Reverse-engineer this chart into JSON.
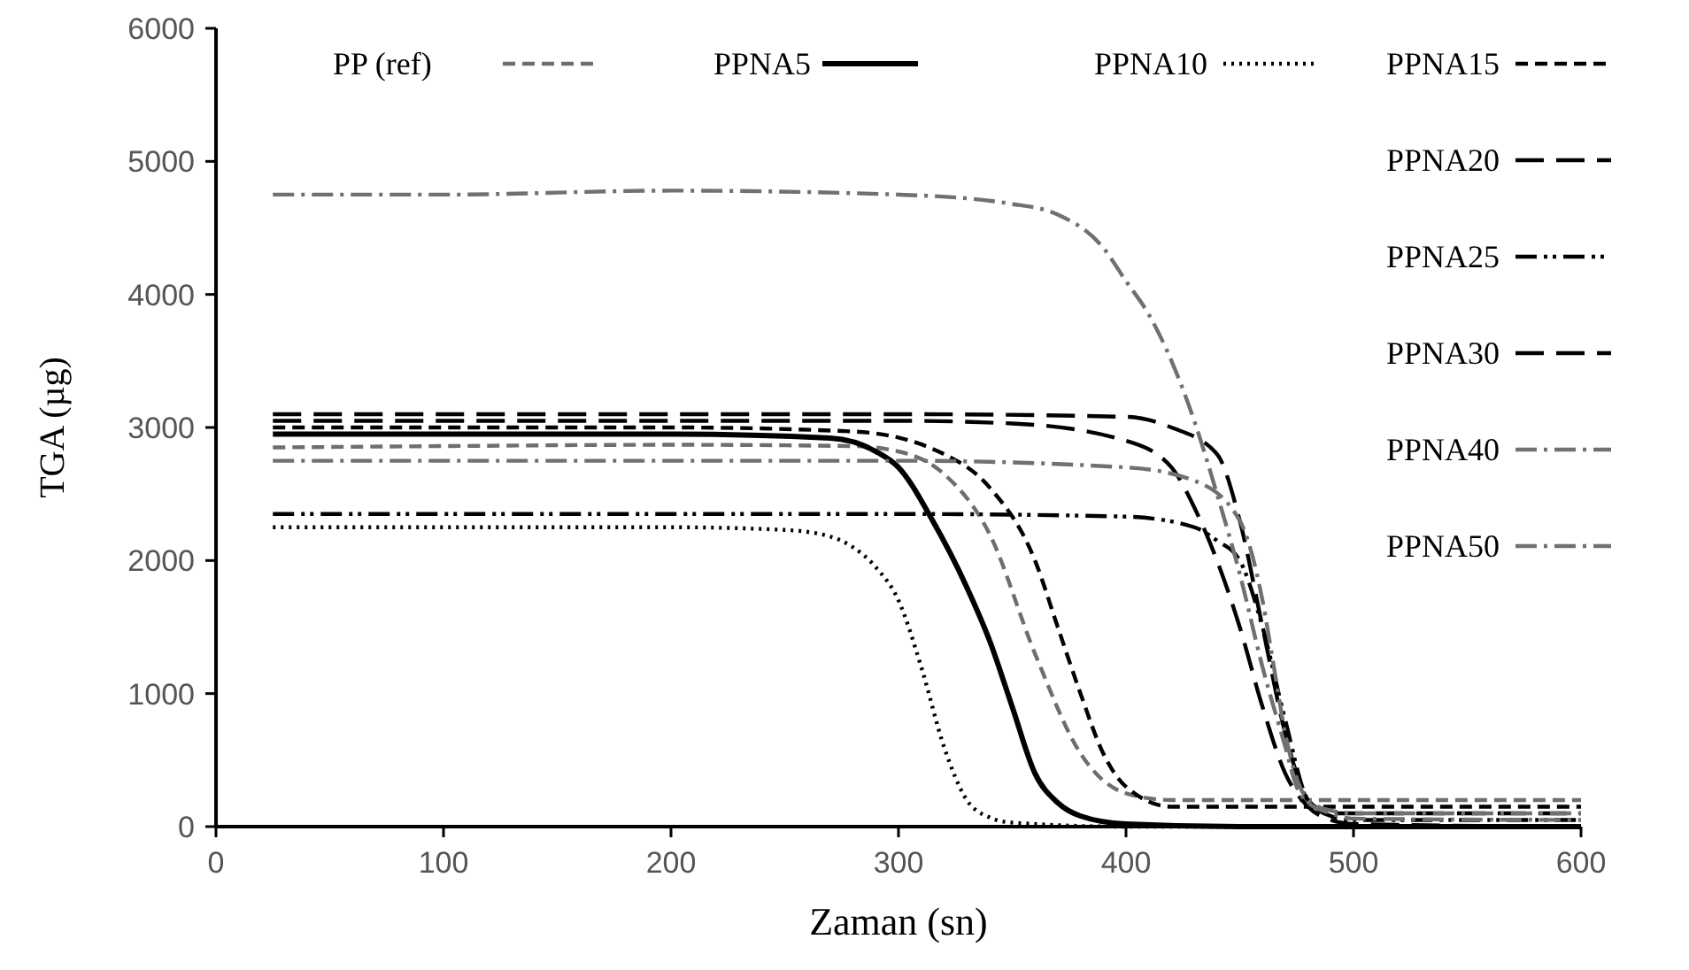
{
  "chart_data": {
    "type": "line",
    "xlabel": "Zaman (sn)",
    "ylabel": "TGA (µg)",
    "xlim": [
      0,
      600
    ],
    "xticks": [
      0,
      100,
      200,
      300,
      400,
      500,
      600
    ],
    "ylim": [
      0,
      6000
    ],
    "yticks": [
      0,
      1000,
      2000,
      3000,
      4000,
      5000,
      6000
    ],
    "grid": false,
    "legend": "top right",
    "series": [
      {
        "name": "PP (ref)",
        "color": "#6e6e6e",
        "line_style": "dashed",
        "x": [
          25,
          100,
          200,
          280,
          300,
          320,
          340,
          360,
          380,
          400,
          420,
          450,
          500,
          600
        ],
        "values": [
          2850,
          2860,
          2870,
          2860,
          2820,
          2650,
          2200,
          1300,
          550,
          250,
          200,
          200,
          200,
          200
        ]
      },
      {
        "name": "PPNA5",
        "color": "#000000",
        "line_style": "solid",
        "x": [
          25,
          100,
          200,
          270,
          290,
          300,
          315,
          330,
          340,
          350,
          360,
          370,
          380,
          400,
          450,
          600
        ],
        "values": [
          2950,
          2950,
          2950,
          2920,
          2820,
          2700,
          2300,
          1800,
          1400,
          900,
          400,
          180,
          80,
          20,
          0,
          0
        ]
      },
      {
        "name": "PPNA10",
        "color": "#000000",
        "line_style": "dotted",
        "x": [
          25,
          100,
          200,
          250,
          270,
          280,
          290,
          300,
          310,
          320,
          330,
          340,
          350,
          400,
          600
        ],
        "values": [
          2250,
          2250,
          2250,
          2230,
          2180,
          2100,
          1950,
          1700,
          1200,
          600,
          200,
          70,
          30,
          0,
          0
        ]
      },
      {
        "name": "PPNA15",
        "color": "#000000",
        "line_style": "dashed",
        "x": [
          25,
          100,
          200,
          280,
          320,
          340,
          360,
          370,
          380,
          390,
          400,
          420,
          450,
          600
        ],
        "values": [
          3000,
          3000,
          3000,
          2970,
          2800,
          2550,
          2000,
          1500,
          1000,
          550,
          300,
          150,
          150,
          150
        ]
      },
      {
        "name": "PPNA20",
        "color": "#000000",
        "line_style": "longdash",
        "x": [
          25,
          100,
          200,
          300,
          350,
          400,
          420,
          430,
          440,
          450,
          460,
          470,
          480,
          490,
          500,
          600
        ],
        "values": [
          3050,
          3050,
          3050,
          3050,
          3030,
          2900,
          2700,
          2400,
          2000,
          1500,
          900,
          400,
          150,
          50,
          20,
          0
        ]
      },
      {
        "name": "PPNA25",
        "color": "#000000",
        "line_style": "dashdotdot",
        "x": [
          25,
          100,
          200,
          300,
          400,
          430,
          440,
          450,
          460,
          470,
          480,
          490,
          500,
          600
        ],
        "values": [
          2350,
          2350,
          2350,
          2350,
          2330,
          2250,
          2150,
          2000,
          1500,
          800,
          200,
          80,
          50,
          50
        ]
      },
      {
        "name": "PPNA30",
        "color": "#000000",
        "line_style": "longdash",
        "x": [
          25,
          100,
          200,
          300,
          400,
          420,
          440,
          450,
          460,
          470,
          475,
          480,
          490,
          500,
          600
        ],
        "values": [
          3100,
          3100,
          3100,
          3100,
          3080,
          3000,
          2800,
          2300,
          1500,
          700,
          400,
          200,
          100,
          100,
          100
        ]
      },
      {
        "name": "PPNA40",
        "color": "#707070",
        "line_style": "dashdot",
        "x": [
          25,
          100,
          200,
          300,
          400,
          430,
          450,
          460,
          465,
          470,
          480,
          490,
          500,
          600
        ],
        "values": [
          2750,
          2750,
          2750,
          2750,
          2700,
          2600,
          2300,
          1700,
          1200,
          700,
          200,
          120,
          100,
          100
        ]
      },
      {
        "name": "PPNA50",
        "color": "#707070",
        "line_style": "dashdot",
        "x": [
          25,
          100,
          200,
          300,
          350,
          370,
          390,
          400,
          410,
          420,
          430,
          440,
          450,
          460,
          470,
          475,
          480,
          490,
          500,
          600
        ],
        "values": [
          4750,
          4750,
          4780,
          4750,
          4680,
          4600,
          4350,
          4100,
          3850,
          3500,
          3050,
          2500,
          1900,
          1200,
          600,
          300,
          180,
          100,
          60,
          50
        ]
      }
    ]
  }
}
